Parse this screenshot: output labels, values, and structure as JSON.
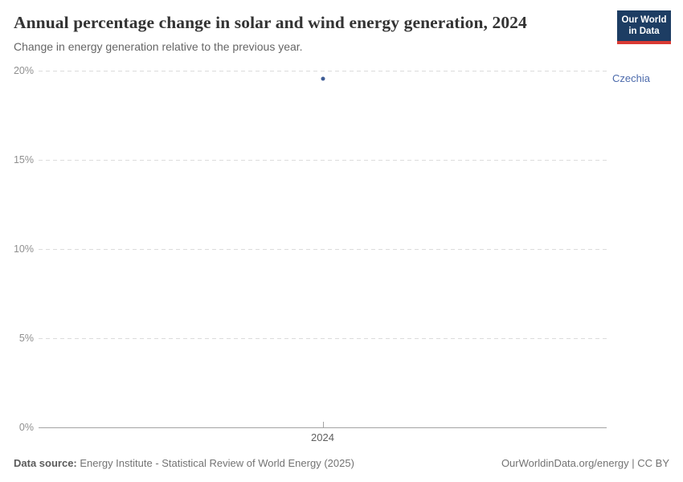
{
  "header": {
    "title": "Annual percentage change in solar and wind energy generation, 2024",
    "subtitle": "Change in energy generation relative to the previous year.",
    "logo_line1": "Our World",
    "logo_line2": "in Data"
  },
  "chart_data": {
    "type": "scatter",
    "title": "Annual percentage change in solar and wind energy generation, 2024",
    "x_categories": [
      "2024"
    ],
    "series": [
      {
        "name": "Czechia",
        "x": "2024",
        "value": 19.55
      }
    ],
    "ylim": [
      0,
      20
    ],
    "yticks": [
      0,
      5,
      10,
      15,
      20
    ],
    "ytick_labels": [
      "0%",
      "5%",
      "10%",
      "15%",
      "20%"
    ],
    "xtick_labels": [
      "2024"
    ],
    "grid": "horizontal-dashed",
    "legend_position": "right-of-point",
    "point_color": "#3e5c95",
    "entity_label_color": "#4d6bac"
  },
  "footer": {
    "source_label": "Data source:",
    "source_text": "Energy Institute - Statistical Review of World Energy (2025)",
    "license_text": "OurWorldinData.org/energy | CC BY"
  },
  "colors": {
    "logo_navy": "#1d3d63",
    "logo_red": "#d93a34",
    "gridline": "#dcdcdc",
    "axis": "#a3a3a3"
  }
}
